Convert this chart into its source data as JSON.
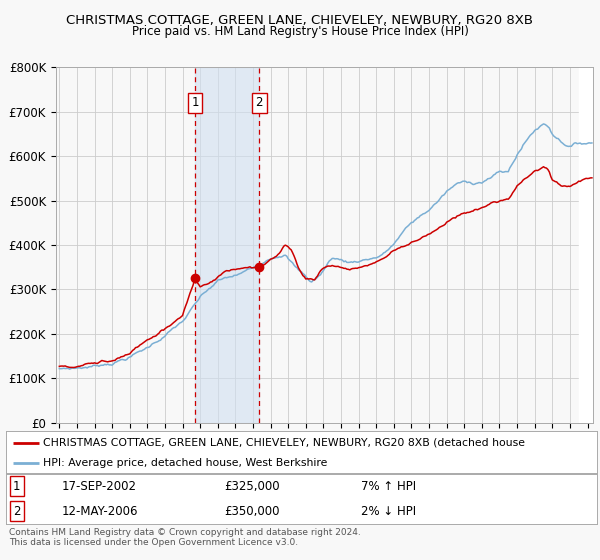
{
  "title": "CHRISTMAS COTTAGE, GREEN LANE, CHIEVELEY, NEWBURY, RG20 8XB",
  "subtitle": "Price paid vs. HM Land Registry's House Price Index (HPI)",
  "ylabel_ticks": [
    "£0",
    "£100K",
    "£200K",
    "£300K",
    "£400K",
    "£500K",
    "£600K",
    "£700K",
    "£800K"
  ],
  "ytick_values": [
    0,
    100000,
    200000,
    300000,
    400000,
    500000,
    600000,
    700000,
    800000
  ],
  "ylim": [
    0,
    800000
  ],
  "xlim_start": 1994.8,
  "xlim_end": 2025.3,
  "background_color": "#f8f8f8",
  "plot_bg_color": "#f8f8f8",
  "grid_color": "#cccccc",
  "hpi_color": "#7bafd4",
  "property_color": "#cc0000",
  "sale1_x": 2002.71,
  "sale1_y": 325000,
  "sale1_label": "1",
  "sale1_date": "17-SEP-2002",
  "sale1_price": "£325,000",
  "sale1_hpi": "7% ↑ HPI",
  "sale2_x": 2006.36,
  "sale2_y": 350000,
  "sale2_label": "2",
  "sale2_date": "12-MAY-2006",
  "sale2_price": "£350,000",
  "sale2_hpi": "2% ↓ HPI",
  "legend_property": "CHRISTMAS COTTAGE, GREEN LANE, CHIEVELEY, NEWBURY, RG20 8XB (detached house",
  "legend_hpi": "HPI: Average price, detached house, West Berkshire",
  "footnote": "Contains HM Land Registry data © Crown copyright and database right 2024.\nThis data is licensed under the Open Government Licence v3.0.",
  "shaded_color": "#d0e0f0",
  "shaded_alpha": 0.6,
  "hatch_color": "#cccccc"
}
